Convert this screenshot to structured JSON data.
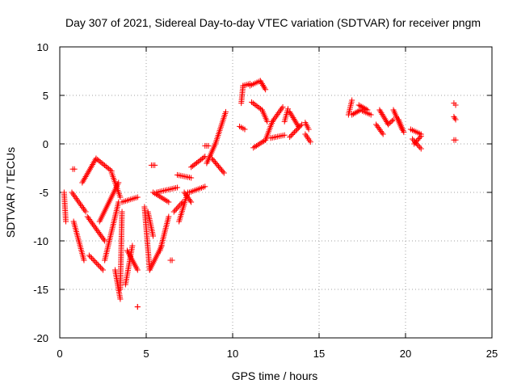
{
  "chart_data": {
    "type": "scatter",
    "title": "Day 307 of 2021, Sidereal Day-to-day VTEC variation (SDTVAR) for receiver pngm",
    "xlabel": "GPS time / hours",
    "ylabel": "SDTVAR / TECUs",
    "xlim": [
      0,
      25
    ],
    "ylim": [
      -20,
      10
    ],
    "xticks": [
      "0",
      "5",
      "10",
      "15",
      "20",
      "25"
    ],
    "yticks": [
      "-20",
      "-15",
      "-10",
      "-5",
      "0",
      "5",
      "10"
    ],
    "grid": true,
    "marker": "+",
    "color": "#ff0000",
    "segments": [
      {
        "x0": 0.25,
        "y0": -5.0,
        "x1": 0.35,
        "y1": -8.0
      },
      {
        "x0": 0.75,
        "y0": -2.6,
        "x1": 0.85,
        "y1": -2.6
      },
      {
        "x0": 0.7,
        "y0": -5.0,
        "x1": 1.5,
        "y1": -7.0
      },
      {
        "x0": 0.8,
        "y0": -8.0,
        "x1": 1.4,
        "y1": -12.0
      },
      {
        "x0": 1.3,
        "y0": -4.0,
        "x1": 2.1,
        "y1": -1.5
      },
      {
        "x0": 2.1,
        "y0": -1.5,
        "x1": 3.0,
        "y1": -2.8
      },
      {
        "x0": 1.6,
        "y0": -7.5,
        "x1": 2.6,
        "y1": -10.0
      },
      {
        "x0": 1.7,
        "y0": -11.5,
        "x1": 2.5,
        "y1": -13.0
      },
      {
        "x0": 2.3,
        "y0": -8.0,
        "x1": 3.4,
        "y1": -4.0
      },
      {
        "x0": 2.6,
        "y0": -12.0,
        "x1": 3.4,
        "y1": -6.0
      },
      {
        "x0": 3.0,
        "y0": -3.0,
        "x1": 3.5,
        "y1": -5.5
      },
      {
        "x0": 3.2,
        "y0": -13.0,
        "x1": 3.5,
        "y1": -16.0
      },
      {
        "x0": 3.5,
        "y0": -15.0,
        "x1": 3.6,
        "y1": -7.0
      },
      {
        "x0": 3.6,
        "y0": -6.0,
        "x1": 4.5,
        "y1": -5.5
      },
      {
        "x0": 3.8,
        "y0": -14.5,
        "x1": 4.2,
        "y1": -10.5
      },
      {
        "x0": 3.9,
        "y0": -11.0,
        "x1": 4.5,
        "y1": -13.0
      },
      {
        "x0": 4.5,
        "y0": -16.8,
        "x1": 4.5,
        "y1": -16.8
      },
      {
        "x0": 4.9,
        "y0": -6.5,
        "x1": 5.2,
        "y1": -13.0
      },
      {
        "x0": 5.1,
        "y0": -7.0,
        "x1": 5.4,
        "y1": -9.5
      },
      {
        "x0": 5.2,
        "y0": -13.0,
        "x1": 5.9,
        "y1": -10.5
      },
      {
        "x0": 5.3,
        "y0": -2.2,
        "x1": 5.5,
        "y1": -2.2
      },
      {
        "x0": 5.4,
        "y0": -5.0,
        "x1": 6.3,
        "y1": -6.0
      },
      {
        "x0": 5.6,
        "y0": -5.0,
        "x1": 6.8,
        "y1": -4.5
      },
      {
        "x0": 5.8,
        "y0": -11.0,
        "x1": 6.3,
        "y1": -7.5
      },
      {
        "x0": 6.4,
        "y0": -12.0,
        "x1": 6.5,
        "y1": -12.0
      },
      {
        "x0": 6.6,
        "y0": -7.0,
        "x1": 7.1,
        "y1": -6.0
      },
      {
        "x0": 6.8,
        "y0": -3.2,
        "x1": 7.6,
        "y1": -3.5
      },
      {
        "x0": 6.9,
        "y0": -8.0,
        "x1": 7.4,
        "y1": -5.0
      },
      {
        "x0": 7.2,
        "y0": -5.0,
        "x1": 7.6,
        "y1": -6.0
      },
      {
        "x0": 7.5,
        "y0": -5.0,
        "x1": 8.4,
        "y1": -4.4
      },
      {
        "x0": 7.6,
        "y0": -2.4,
        "x1": 8.4,
        "y1": -1.3
      },
      {
        "x0": 8.4,
        "y0": -0.2,
        "x1": 8.6,
        "y1": -0.2
      },
      {
        "x0": 8.5,
        "y0": -2.0,
        "x1": 9.0,
        "y1": 0.0
      },
      {
        "x0": 8.8,
        "y0": -1.5,
        "x1": 9.5,
        "y1": -3.0
      },
      {
        "x0": 9.0,
        "y0": 0.0,
        "x1": 9.6,
        "y1": 3.3
      },
      {
        "x0": 10.4,
        "y0": 1.8,
        "x1": 10.7,
        "y1": 1.5
      },
      {
        "x0": 10.5,
        "y0": 4.2,
        "x1": 10.6,
        "y1": 6.0
      },
      {
        "x0": 10.6,
        "y0": 6.0,
        "x1": 11.0,
        "y1": 6.2
      },
      {
        "x0": 11.0,
        "y0": 6.0,
        "x1": 11.6,
        "y1": 6.5
      },
      {
        "x0": 11.6,
        "y0": 6.5,
        "x1": 11.9,
        "y1": 5.6
      },
      {
        "x0": 11.1,
        "y0": 4.3,
        "x1": 11.7,
        "y1": 3.5
      },
      {
        "x0": 11.7,
        "y0": 3.5,
        "x1": 12.0,
        "y1": 2.3
      },
      {
        "x0": 11.2,
        "y0": -0.4,
        "x1": 11.9,
        "y1": 0.4
      },
      {
        "x0": 11.9,
        "y0": 0.4,
        "x1": 12.3,
        "y1": 2.3
      },
      {
        "x0": 12.3,
        "y0": 2.3,
        "x1": 12.9,
        "y1": 3.8
      },
      {
        "x0": 12.2,
        "y0": 0.6,
        "x1": 13.0,
        "y1": 0.9
      },
      {
        "x0": 13.0,
        "y0": 2.3,
        "x1": 13.2,
        "y1": 3.6
      },
      {
        "x0": 13.3,
        "y0": 3.3,
        "x1": 13.8,
        "y1": 1.8
      },
      {
        "x0": 13.3,
        "y0": 0.7,
        "x1": 14.0,
        "y1": 2.0
      },
      {
        "x0": 14.2,
        "y0": 2.2,
        "x1": 14.4,
        "y1": 1.5
      },
      {
        "x0": 14.2,
        "y0": 1.0,
        "x1": 14.5,
        "y1": 0.2
      },
      {
        "x0": 16.7,
        "y0": 3.0,
        "x1": 16.9,
        "y1": 4.5
      },
      {
        "x0": 16.9,
        "y0": 3.0,
        "x1": 17.4,
        "y1": 3.5
      },
      {
        "x0": 17.3,
        "y0": 4.0,
        "x1": 17.8,
        "y1": 3.5
      },
      {
        "x0": 17.5,
        "y0": 3.4,
        "x1": 18.0,
        "y1": 3.0
      },
      {
        "x0": 18.3,
        "y0": 2.0,
        "x1": 18.7,
        "y1": 1.0
      },
      {
        "x0": 18.5,
        "y0": 3.5,
        "x1": 19.0,
        "y1": 2.0
      },
      {
        "x0": 19.0,
        "y0": 2.0,
        "x1": 19.3,
        "y1": 2.5
      },
      {
        "x0": 19.3,
        "y0": 3.5,
        "x1": 19.8,
        "y1": 1.5
      },
      {
        "x0": 19.6,
        "y0": 2.5,
        "x1": 19.9,
        "y1": 1.2
      },
      {
        "x0": 20.3,
        "y0": 1.5,
        "x1": 20.9,
        "y1": 1.0
      },
      {
        "x0": 20.4,
        "y0": 0.5,
        "x1": 20.9,
        "y1": -0.5
      },
      {
        "x0": 20.5,
        "y0": 0.0,
        "x1": 20.9,
        "y1": 0.8
      },
      {
        "x0": 22.8,
        "y0": 4.2,
        "x1": 22.9,
        "y1": 4.0
      },
      {
        "x0": 22.8,
        "y0": 2.8,
        "x1": 22.9,
        "y1": 2.5
      },
      {
        "x0": 22.8,
        "y0": 0.4,
        "x1": 22.9,
        "y1": 0.4
      }
    ]
  }
}
